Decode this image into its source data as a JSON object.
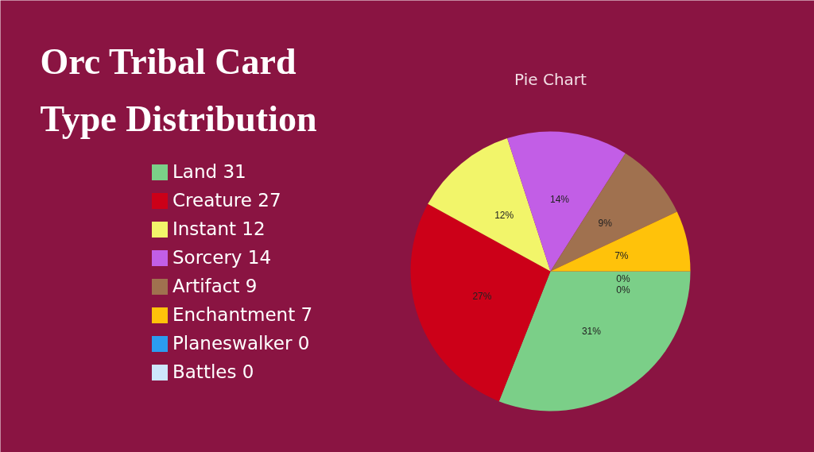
{
  "chart_data": {
    "type": "pie",
    "title": "Orc Tribal Card Type Distribution",
    "subtitle": "Pie Chart",
    "categories": [
      "Land 31",
      "Creature 27",
      "Instant 12",
      "Sorcery 14",
      "Artifact 9",
      "Enchantment 7",
      "Planeswalker 0",
      "Battles 0"
    ],
    "values": [
      31,
      27,
      12,
      14,
      9,
      7,
      0,
      0
    ],
    "colors": [
      "#7bcf88",
      "#cc0018",
      "#f2f56a",
      "#c25ee6",
      "#a0714f",
      "#ffc20a",
      "#2b9cf0",
      "#cde6fb"
    ],
    "value_labels": [
      "31%",
      "27%",
      "12%",
      "14%",
      "9%",
      "7%",
      "0%",
      "0%"
    ],
    "legend": "left"
  }
}
